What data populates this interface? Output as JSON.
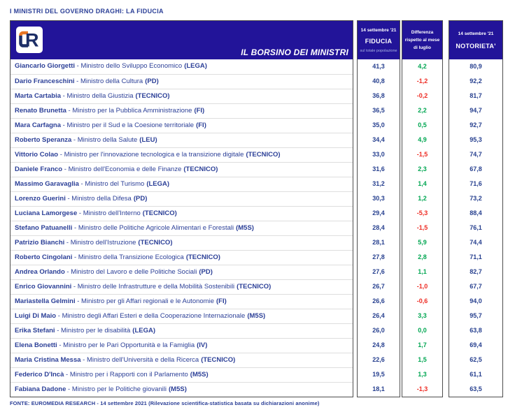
{
  "page_title": "I MINISTRI DEL GOVERNO DRAGHI: LA FIDUCIA",
  "banner": {
    "logo_name": "euromedia-research-logo",
    "logo_letters": "ER",
    "title": "IL BORSINO DEI MINISTRI"
  },
  "columns": {
    "fiducia": {
      "date": "14 settembre '21",
      "label": "FIDUCIA",
      "sublabel": "sul totale popolazione"
    },
    "differenza": {
      "label": "Differenza\nrispetto al mese\ndi luglio"
    },
    "notorieta": {
      "date": "14 settembre '21",
      "label": "NOTORIETA'"
    }
  },
  "format": {
    "separator": " - "
  },
  "rows": [
    {
      "name": "Giancarlo Giorgetti",
      "role": "Ministro dello Sviluppo Economico",
      "party": "(LEGA)",
      "fiducia": "41,3",
      "diff": "4,2",
      "trend": "up",
      "notorieta": "80,9"
    },
    {
      "name": "Dario Franceschini",
      "role": "Ministro della Cultura",
      "party": "(PD)",
      "fiducia": "40,8",
      "diff": "-1,2",
      "trend": "down",
      "notorieta": "92,2"
    },
    {
      "name": "Marta Cartabia",
      "role": "Ministro della Giustizia",
      "party": "(TECNICO)",
      "fiducia": "36,8",
      "diff": "-0,2",
      "trend": "down",
      "notorieta": "81,7"
    },
    {
      "name": "Renato Brunetta",
      "role": "Ministro per la Pubblica Amministrazione",
      "party": "(FI)",
      "fiducia": "36,5",
      "diff": "2,2",
      "trend": "up",
      "notorieta": "94,7"
    },
    {
      "name": "Mara Carfagna",
      "role": "Ministro per il Sud e la Coesione territoriale",
      "party": "(FI)",
      "fiducia": "35,0",
      "diff": "0,5",
      "trend": "up",
      "notorieta": "92,7"
    },
    {
      "name": "Roberto Speranza",
      "role": "Ministro della Salute",
      "party": "(LEU)",
      "fiducia": "34,4",
      "diff": "4,9",
      "trend": "up",
      "notorieta": "95,3"
    },
    {
      "name": "Vittorio Colao",
      "role": "Ministro per l'innovazione tecnologica e la transizione digitale",
      "party": "(TECNICO)",
      "fiducia": "33,0",
      "diff": "-1,5",
      "trend": "down",
      "notorieta": "74,7"
    },
    {
      "name": "Daniele Franco",
      "role": "Ministro dell'Economia e delle Finanze",
      "party": "(TECNICO)",
      "fiducia": "31,6",
      "diff": "2,3",
      "trend": "up",
      "notorieta": "67,8"
    },
    {
      "name": "Massimo Garavaglia",
      "role": "Ministro del Turismo",
      "party": "(LEGA)",
      "fiducia": "31,2",
      "diff": "1,4",
      "trend": "up",
      "notorieta": "71,6"
    },
    {
      "name": "Lorenzo Guerini",
      "role": "Ministro della Difesa",
      "party": "(PD)",
      "fiducia": "30,3",
      "diff": "1,2",
      "trend": "up",
      "notorieta": "73,2"
    },
    {
      "name": "Luciana Lamorgese",
      "role": "Ministro dell'Interno",
      "party": "(TECNICO)",
      "fiducia": "29,4",
      "diff": "-5,3",
      "trend": "down",
      "notorieta": "88,4"
    },
    {
      "name": "Stefano Patuanelli",
      "role": "Ministro delle Politiche Agricole Alimentari e Forestali",
      "party": "(M5S)",
      "fiducia": "28,4",
      "diff": "-1,5",
      "trend": "down",
      "notorieta": "76,1"
    },
    {
      "name": "Patrizio Bianchi",
      "role": "Ministro dell'Istruzione",
      "party": "(TECNICO)",
      "fiducia": "28,1",
      "diff": "5,9",
      "trend": "up",
      "notorieta": "74,4"
    },
    {
      "name": "Roberto Cingolani",
      "role": "Ministro della Transizione Ecologica",
      "party": "(TECNICO)",
      "fiducia": "27,8",
      "diff": "2,8",
      "trend": "up",
      "notorieta": "71,1"
    },
    {
      "name": "Andrea Orlando",
      "role": "Ministro del Lavoro e delle Politiche Sociali",
      "party": "(PD)",
      "fiducia": "27,6",
      "diff": "1,1",
      "trend": "up",
      "notorieta": "82,7"
    },
    {
      "name": "Enrico Giovannini",
      "role": "Ministro delle Infrastrutture e della Mobilità Sostenibili",
      "party": "(TECNICO)",
      "fiducia": "26,7",
      "diff": "-1,0",
      "trend": "down",
      "notorieta": "67,7"
    },
    {
      "name": "Mariastella Gelmini",
      "role": "Ministro per gli Affari regionali e le Autonomie",
      "party": "(FI)",
      "fiducia": "26,6",
      "diff": "-0,6",
      "trend": "down",
      "notorieta": "94,0"
    },
    {
      "name": "Luigi Di Maio",
      "role": "Ministro degli Affari Esteri e della Cooperazione Internazionale",
      "party": "(M5S)",
      "fiducia": "26,4",
      "diff": "3,3",
      "trend": "up",
      "notorieta": "95,7"
    },
    {
      "name": "Erika Stefani",
      "role": "Ministro per le disabilità",
      "party": "(LEGA)",
      "fiducia": "26,0",
      "diff": "0,0",
      "trend": "up",
      "notorieta": "63,8"
    },
    {
      "name": "Elena Bonetti",
      "role": "Ministro per le Pari Opportunità e la Famiglia",
      "party": "(IV)",
      "fiducia": "24,8",
      "diff": "1,7",
      "trend": "up",
      "notorieta": "69,4"
    },
    {
      "name": "Maria Cristina Messa",
      "role": "Ministro dell'Università e della Ricerca",
      "party": "(TECNICO)",
      "fiducia": "22,6",
      "diff": "1,5",
      "trend": "up",
      "notorieta": "62,5"
    },
    {
      "name": "Federico D'Incà",
      "role": "Ministro per i Rapporti con il Parlamento",
      "party": "(M5S)",
      "fiducia": "19,5",
      "diff": "1,3",
      "trend": "up",
      "notorieta": "61,1"
    },
    {
      "name": "Fabiana Dadone",
      "role": "Ministro per le Politiche giovanili",
      "party": "(M5S)",
      "fiducia": "18,1",
      "diff": "-1,3",
      "trend": "down",
      "notorieta": "63,5"
    }
  ],
  "footer": "FONTE: EUROMEDIA RESEARCH - 14 settembre 2021 (Rilevazione scientifica-statistica basata su dichiarazioni anonime)",
  "colors": {
    "header_navy": "#221499",
    "text_navy": "#2B3F97",
    "positive_green": "#00A651",
    "negative_red": "#EE2C24",
    "logo_orange": "#E87624",
    "block_border": "#4d4d4d"
  },
  "chart_data": {
    "type": "table",
    "title": "I MINISTRI DEL GOVERNO DRAGHI: LA FIDUCIA",
    "columns": [
      "Ministro",
      "FIDUCIA 14 settembre '21",
      "Differenza rispetto al mese di luglio",
      "NOTORIETA' 14 settembre '21"
    ],
    "fiducia_values": [
      41.3,
      40.8,
      36.8,
      36.5,
      35.0,
      34.4,
      33.0,
      31.6,
      31.2,
      30.3,
      29.4,
      28.4,
      28.1,
      27.8,
      27.6,
      26.7,
      26.6,
      26.4,
      26.0,
      24.8,
      22.6,
      19.5,
      18.1
    ],
    "differenza_values": [
      4.2,
      -1.2,
      -0.2,
      2.2,
      0.5,
      4.9,
      -1.5,
      2.3,
      1.4,
      1.2,
      -5.3,
      -1.5,
      5.9,
      2.8,
      1.1,
      -1.0,
      -0.6,
      3.3,
      0.0,
      1.7,
      1.5,
      1.3,
      -1.3
    ],
    "notorieta_values": [
      80.9,
      92.2,
      81.7,
      94.7,
      92.7,
      95.3,
      74.7,
      67.8,
      71.6,
      73.2,
      88.4,
      76.1,
      74.4,
      71.1,
      82.7,
      67.7,
      94.0,
      95.7,
      63.8,
      69.4,
      62.5,
      61.1,
      63.5
    ]
  }
}
